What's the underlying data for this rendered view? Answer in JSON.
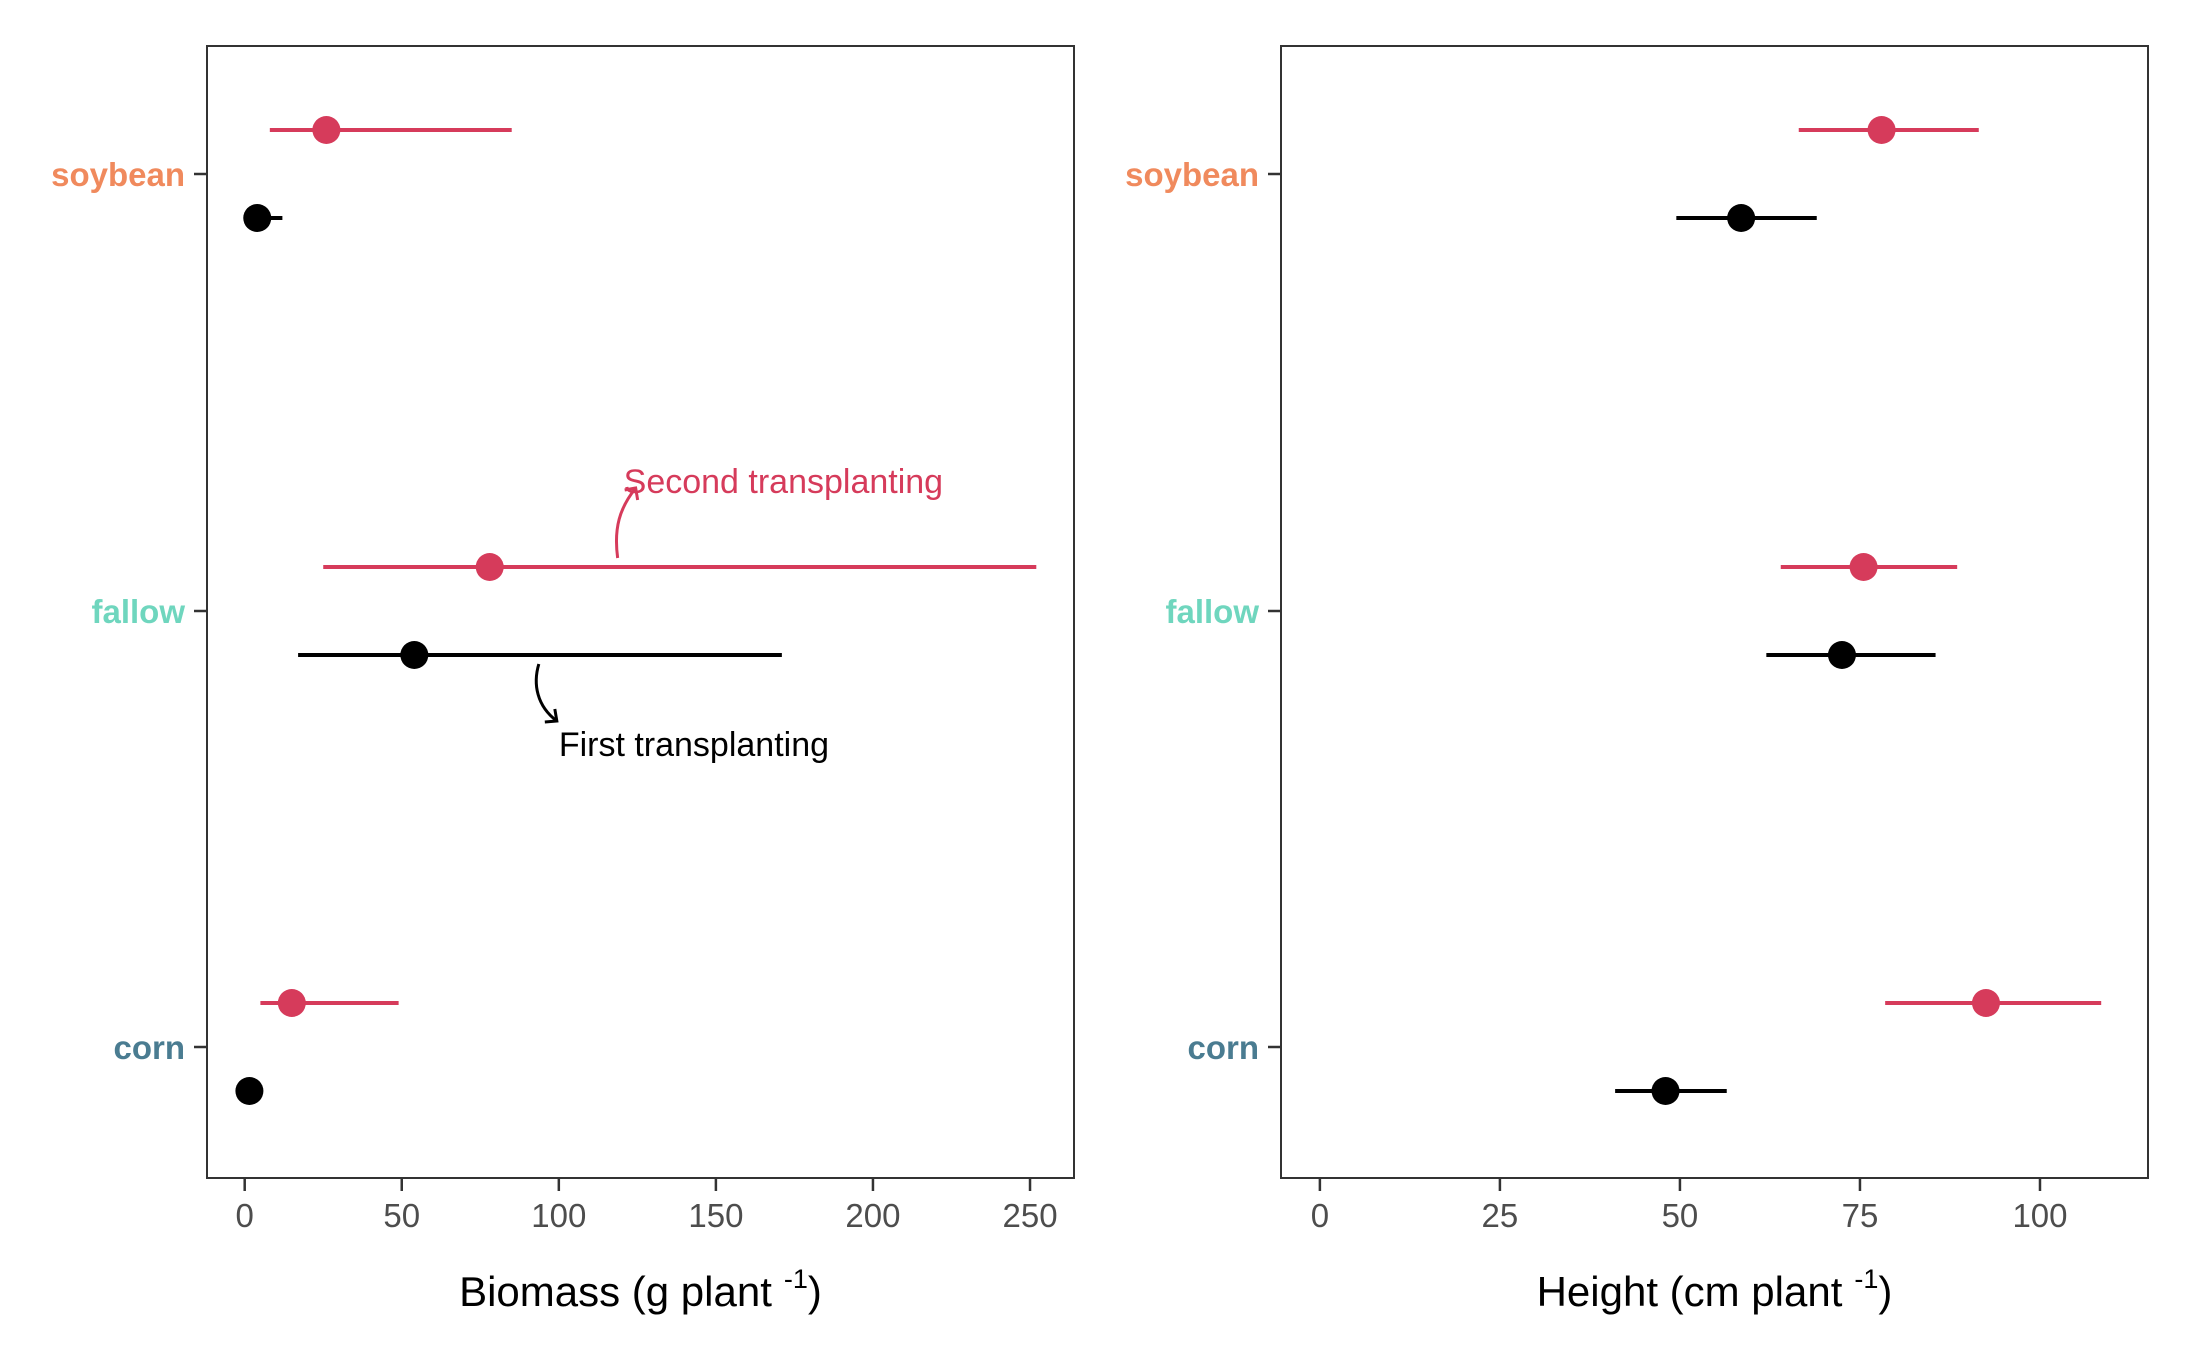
{
  "colors": {
    "soybean": "#F08A5D",
    "fallow": "#6FD6BE",
    "corn": "#4A7C91",
    "first_transplanting": "#000000",
    "second_transplanting": "#D63B5B",
    "panel_border": "#333333",
    "tick_text": "#4d4d4d"
  },
  "chart_data": [
    {
      "type": "scatter",
      "subtype": "point-range",
      "categories": [
        "soybean",
        "fallow",
        "corn"
      ],
      "xlabel": "Biomass (g plant",
      "xlabel_sup": "-1",
      "xlabel_close": ")",
      "xlim": [
        -12,
        264
      ],
      "xticks": [
        0,
        50,
        100,
        150,
        200,
        250
      ],
      "xtick_labels": [
        "0",
        "50",
        "100",
        "150",
        "200",
        "250"
      ],
      "grid": false,
      "series": [
        {
          "color_key": "second_transplanting",
          "points": [
            {
              "category": "soybean",
              "x": 26,
              "lo": 8,
              "hi": 85
            },
            {
              "category": "fallow",
              "x": 78,
              "lo": 25,
              "hi": 252
            },
            {
              "category": "corn",
              "x": 15,
              "lo": 5,
              "hi": 49
            }
          ]
        },
        {
          "color_key": "first_transplanting",
          "points": [
            {
              "category": "soybean",
              "x": 4,
              "lo": 2,
              "hi": 12
            },
            {
              "category": "fallow",
              "x": 54,
              "lo": 17,
              "hi": 171
            },
            {
              "category": "corn",
              "x": 1.5,
              "lo": 1,
              "hi": 2
            }
          ]
        }
      ],
      "annotations": [
        {
          "text": "Second transplanting",
          "color_key": "second_transplanting",
          "category": "fallow",
          "x": 120,
          "dy": -1
        },
        {
          "text": "First transplanting",
          "color_key": "first_transplanting",
          "category": "fallow",
          "x": 100,
          "dy": 1
        }
      ]
    },
    {
      "type": "scatter",
      "subtype": "point-range",
      "categories": [
        "soybean",
        "fallow",
        "corn"
      ],
      "xlabel": "Height (cm plant",
      "xlabel_sup": "-1",
      "xlabel_close": ")",
      "xlim": [
        -5.4,
        115
      ],
      "xticks": [
        0,
        25,
        50,
        75,
        100
      ],
      "xtick_labels": [
        "0",
        "25",
        "50",
        "75",
        "100"
      ],
      "grid": false,
      "series": [
        {
          "color_key": "second_transplanting",
          "points": [
            {
              "category": "soybean",
              "x": 78,
              "lo": 66.5,
              "hi": 91.5
            },
            {
              "category": "fallow",
              "x": 75.5,
              "lo": 64,
              "hi": 88.5
            },
            {
              "category": "corn",
              "x": 92.5,
              "lo": 78.5,
              "hi": 108.5
            }
          ]
        },
        {
          "color_key": "first_transplanting",
          "points": [
            {
              "category": "soybean",
              "x": 58.5,
              "lo": 49.5,
              "hi": 69
            },
            {
              "category": "fallow",
              "x": 72.5,
              "lo": 62,
              "hi": 85.5
            },
            {
              "category": "corn",
              "x": 48,
              "lo": 41,
              "hi": 56.5
            }
          ]
        }
      ],
      "annotations": []
    }
  ]
}
